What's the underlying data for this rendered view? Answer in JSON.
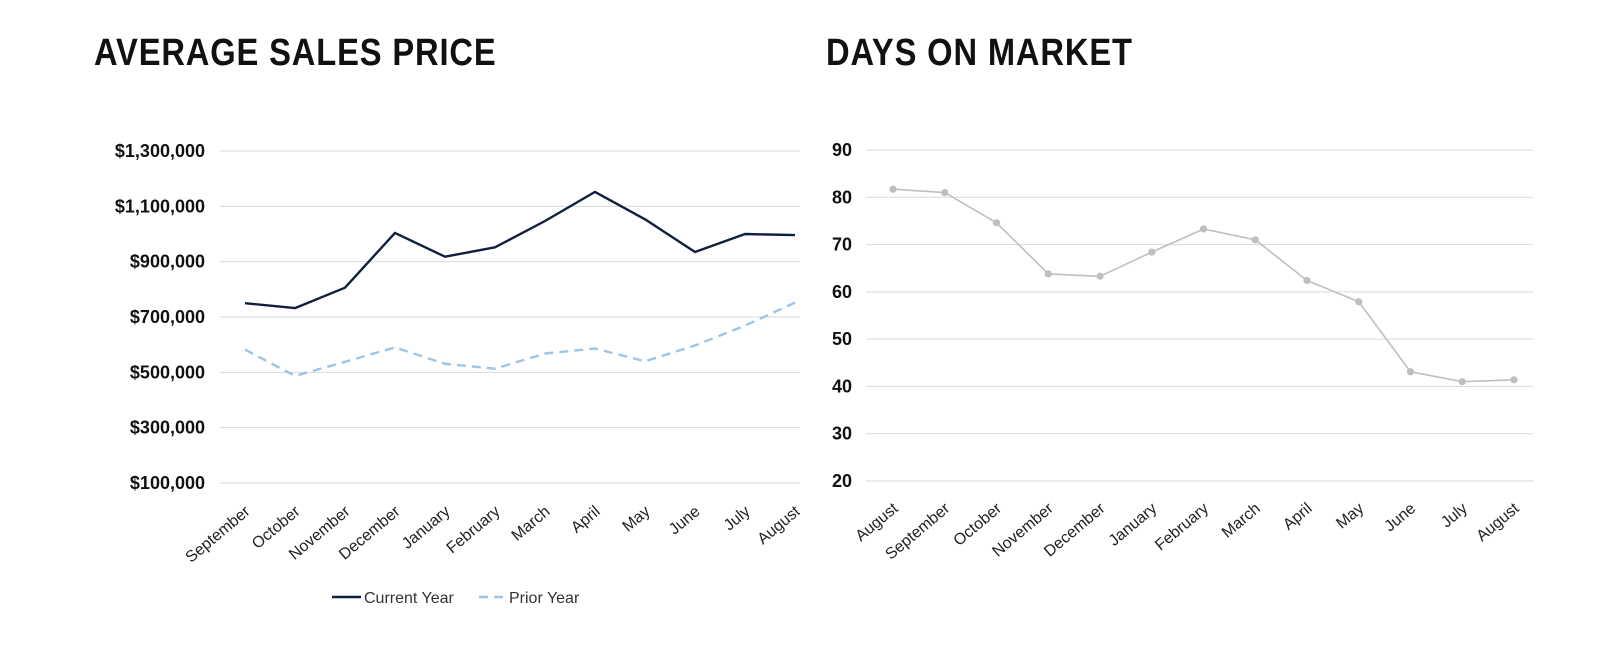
{
  "chart_data": [
    {
      "type": "line",
      "title": "AVERAGE SALES PRICE",
      "xlabel": "",
      "ylabel": "",
      "categories": [
        "September",
        "October",
        "November",
        "December",
        "January",
        "February",
        "March",
        "April",
        "May",
        "June",
        "July",
        "August"
      ],
      "yticks": [
        100000,
        300000,
        500000,
        700000,
        900000,
        1100000,
        1300000
      ],
      "ytick_labels": [
        "$100,000",
        "$300,000",
        "$500,000",
        "$700,000",
        "$900,000",
        "$1,100,000",
        "$1,300,000"
      ],
      "ylim": [
        100000,
        1300000
      ],
      "grid": true,
      "legend": "bottom",
      "series": [
        {
          "name": "Current Year",
          "color": "#0f1f3d",
          "style": "solid",
          "values": [
            750000,
            732000,
            806000,
            1004000,
            918000,
            952000,
            1047000,
            1152000,
            1053000,
            935000,
            1000000,
            996000
          ]
        },
        {
          "name": "Prior Year",
          "color": "#9ec5e6",
          "style": "dashed",
          "values": [
            582000,
            487000,
            538000,
            590000,
            531000,
            513000,
            568000,
            586000,
            540000,
            597000,
            669000,
            752000
          ]
        }
      ]
    },
    {
      "type": "line",
      "title": "DAYS ON MARKET",
      "xlabel": "",
      "ylabel": "",
      "categories": [
        "August",
        "September",
        "October",
        "November",
        "December",
        "January",
        "February",
        "March",
        "April",
        "May",
        "June",
        "July",
        "August"
      ],
      "yticks": [
        20,
        30,
        40,
        50,
        60,
        70,
        80,
        90
      ],
      "ytick_labels": [
        "20",
        "30",
        "40",
        "50",
        "60",
        "70",
        "80",
        "90"
      ],
      "ylim": [
        20,
        90
      ],
      "grid": true,
      "legend": "none",
      "series": [
        {
          "color": "#bfbfbf",
          "style": "solid-markers",
          "values": [
            81.7,
            81.0,
            74.6,
            63.8,
            63.3,
            68.4,
            73.3,
            71.0,
            62.4,
            57.9,
            43.1,
            41.0,
            41.4
          ]
        }
      ]
    }
  ]
}
